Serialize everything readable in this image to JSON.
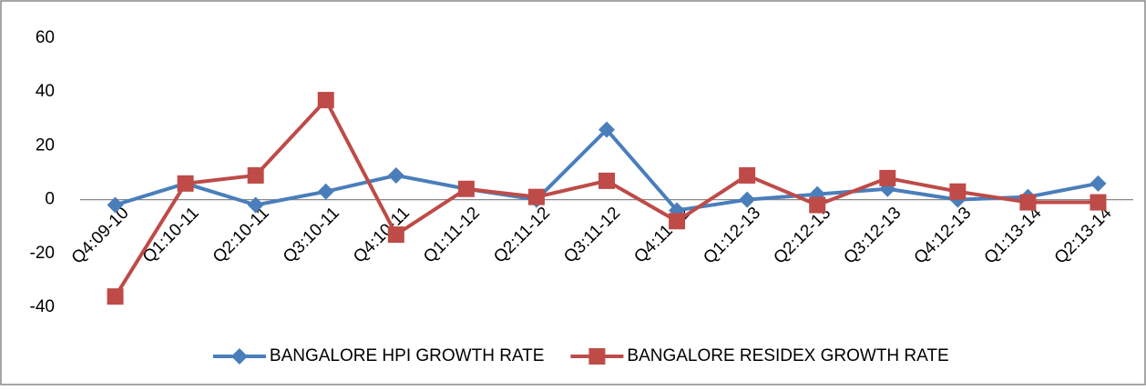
{
  "chart_data": {
    "type": "line",
    "categories": [
      "Q4:09-10",
      "Q1:10-11",
      "Q2:10-11",
      "Q3:10-11",
      "Q4:10-11",
      "Q1:11-12",
      "Q2:11-12",
      "Q3:11-12",
      "Q4:11-12",
      "Q1:12-13",
      "Q2:12-13",
      "Q3:12-13",
      "Q4:12-13",
      "Q1:13-14",
      "Q2:13-14"
    ],
    "series": [
      {
        "name": "BANGALORE HPI GROWTH RATE",
        "color": "#4a7ebb",
        "marker": "diamond",
        "values": [
          -2,
          6,
          -2,
          3,
          9,
          4,
          0,
          26,
          -4,
          0,
          2,
          4,
          0,
          1,
          6
        ]
      },
      {
        "name": "BANGALORE RESIDEX GROWTH RATE",
        "color": "#be4b48",
        "marker": "square",
        "values": [
          -36,
          6,
          9,
          37,
          -13,
          4,
          1,
          7,
          -8,
          9,
          -2,
          8,
          3,
          -1,
          -1
        ]
      }
    ],
    "ylim": [
      -40,
      60
    ],
    "yticks": [
      -40,
      -20,
      0,
      20,
      40,
      60
    ],
    "grid": false,
    "legend": "bottom"
  }
}
